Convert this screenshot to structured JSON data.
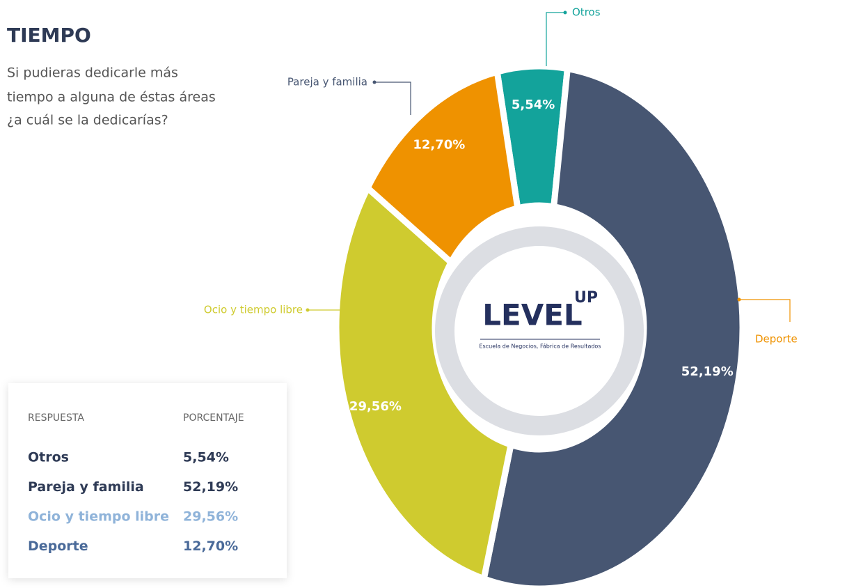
{
  "chart_data": {
    "type": "pie",
    "donut": true,
    "title": "TIEMPO",
    "subtitle": [
      "Si pudieras dedicarle más",
      "tiempo a alguna de éstas áreas",
      "¿a cuál se la dedicarías?"
    ],
    "categories": [
      "Otros",
      "Pareja y familia",
      "Ocio y tiempo libre",
      "Deporte"
    ],
    "values": [
      5.54,
      52.19,
      29.56,
      12.7
    ],
    "value_labels": [
      "5,54%",
      "52,19%",
      "29,56%",
      "12,70%"
    ],
    "colors": [
      "#13a39b",
      "#475672",
      "#cfcb2f",
      "#ef9200"
    ]
  },
  "table": {
    "headers": [
      "RESPUESTA",
      "PORCENTAJE"
    ]
  },
  "logo": {
    "name": "LEVEL",
    "superscript": "UP",
    "tagline": "Escuela de Negocios, Fábrica de Resultados"
  }
}
